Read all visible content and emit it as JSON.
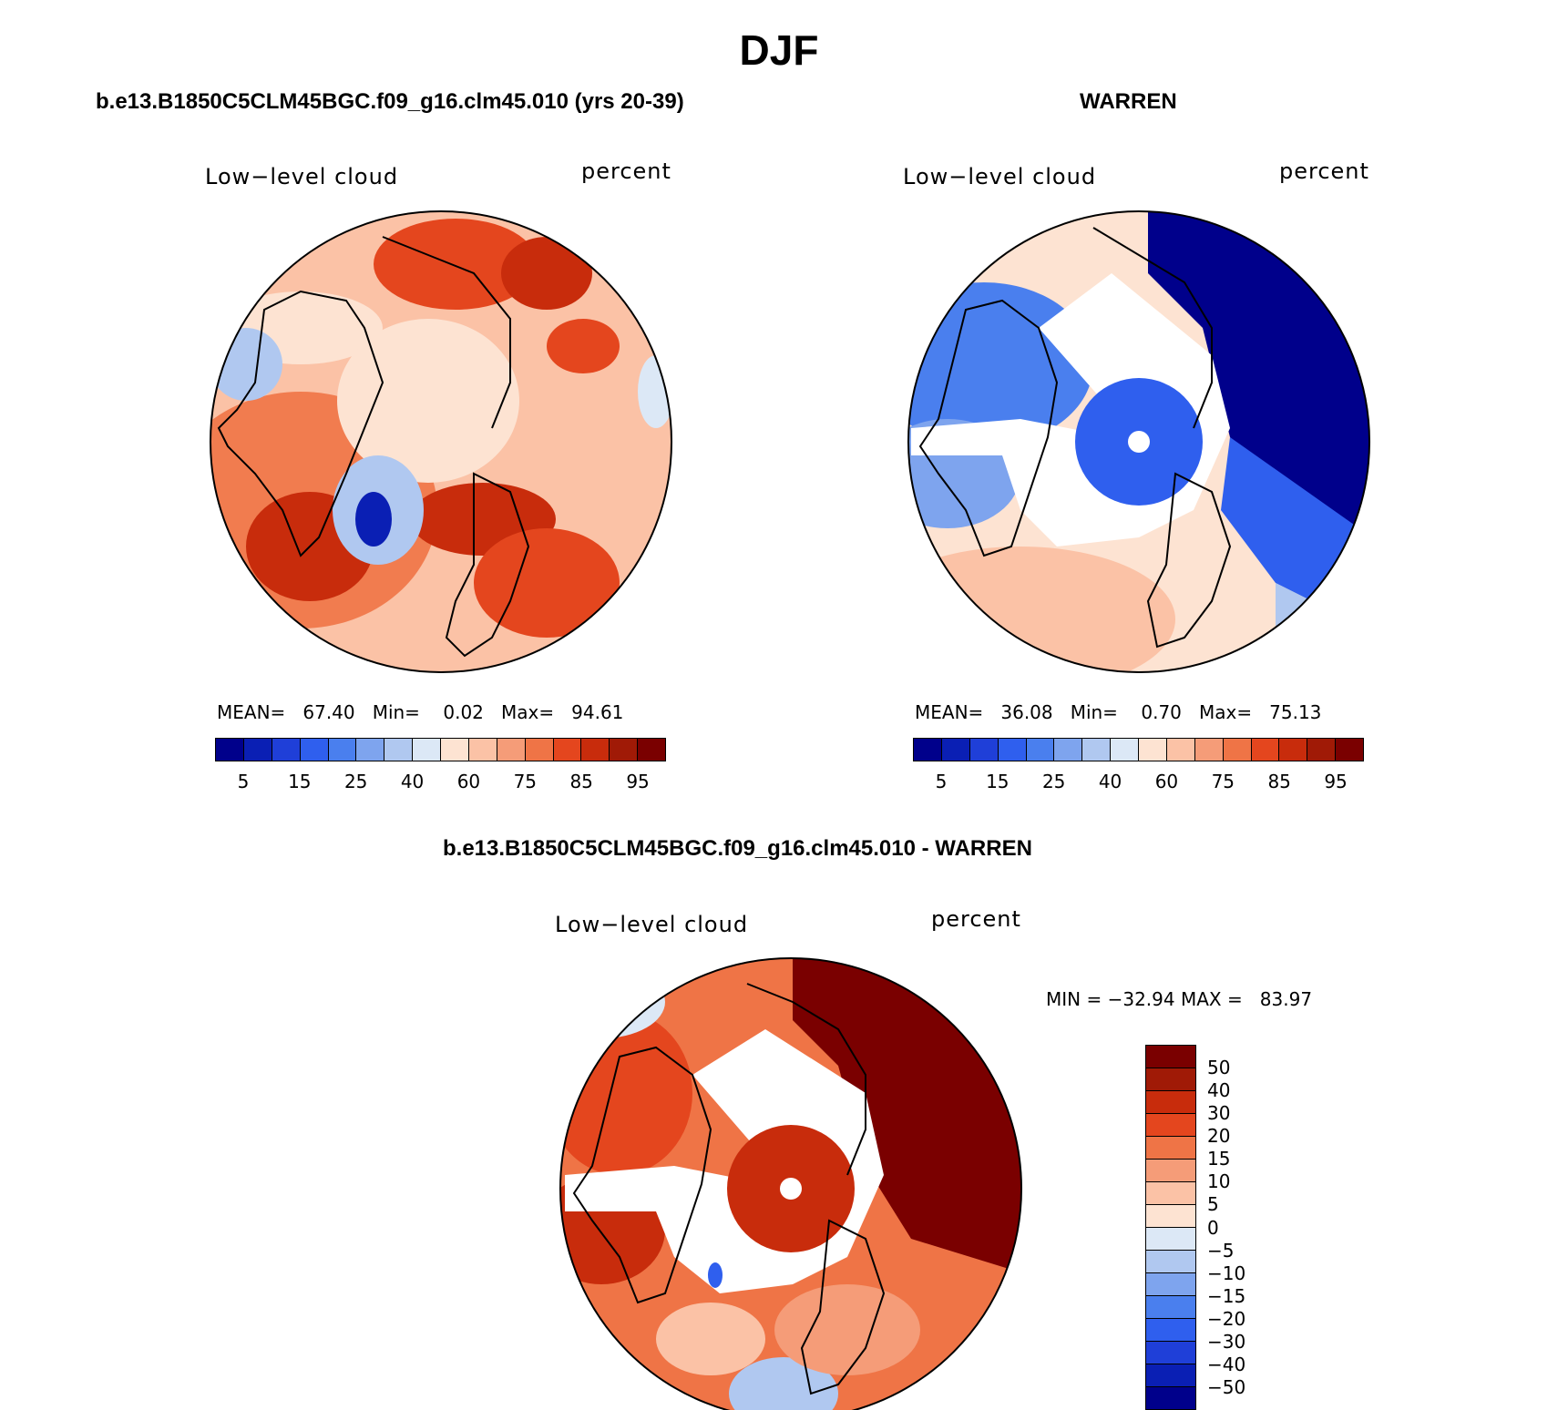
{
  "title": "DJF",
  "panels": [
    {
      "title": "b.e13.B1850C5CLM45BGC.f09_g16.clm45.010 (yrs 20-39)",
      "variable": "Low−level cloud",
      "units": "percent",
      "stats": "MEAN=   67.40   Min=    0.02   Max=   94.61",
      "colorbar_ticks": [
        "5",
        "15",
        "25",
        "40",
        "60",
        "75",
        "85",
        "95"
      ]
    },
    {
      "title": "WARREN",
      "variable": "Low−level cloud",
      "units": "percent",
      "stats": "MEAN=   36.08   Min=    0.70   Max=   75.13",
      "colorbar_ticks": [
        "5",
        "15",
        "25",
        "40",
        "60",
        "75",
        "85",
        "95"
      ]
    }
  ],
  "diff_panel": {
    "title": "b.e13.B1850C5CLM45BGC.f09_g16.clm45.010 - WARREN",
    "variable": "Low−level cloud",
    "units": "percent",
    "stats": "MIN = −32.94 MAX =   83.97",
    "colorbar_labels": [
      "50",
      "40",
      "30",
      "20",
      "15",
      "10",
      "5",
      "0",
      "−5",
      "−10",
      "−15",
      "−20",
      "−30",
      "−40",
      "−50"
    ]
  },
  "colors": {
    "abs_scale": [
      "#00008b",
      "#0a1fb4",
      "#1f3fd8",
      "#2f5fee",
      "#4a7fee",
      "#7ea4ee",
      "#b0c8f0",
      "#dce8f6",
      "#fde3d2",
      "#fbc2a6",
      "#f59c78",
      "#ef7446",
      "#e4461e",
      "#c82c0c",
      "#a01a06",
      "#7a0000"
    ],
    "diff_scale": [
      "#7a0000",
      "#a01a06",
      "#c82c0c",
      "#e4461e",
      "#ef7446",
      "#f59c78",
      "#fbc2a6",
      "#fde3d2",
      "#dce8f6",
      "#b0c8f0",
      "#7ea4ee",
      "#4a7fee",
      "#2f5fee",
      "#1f3fd8",
      "#0a1fb4",
      "#00008b"
    ]
  }
}
